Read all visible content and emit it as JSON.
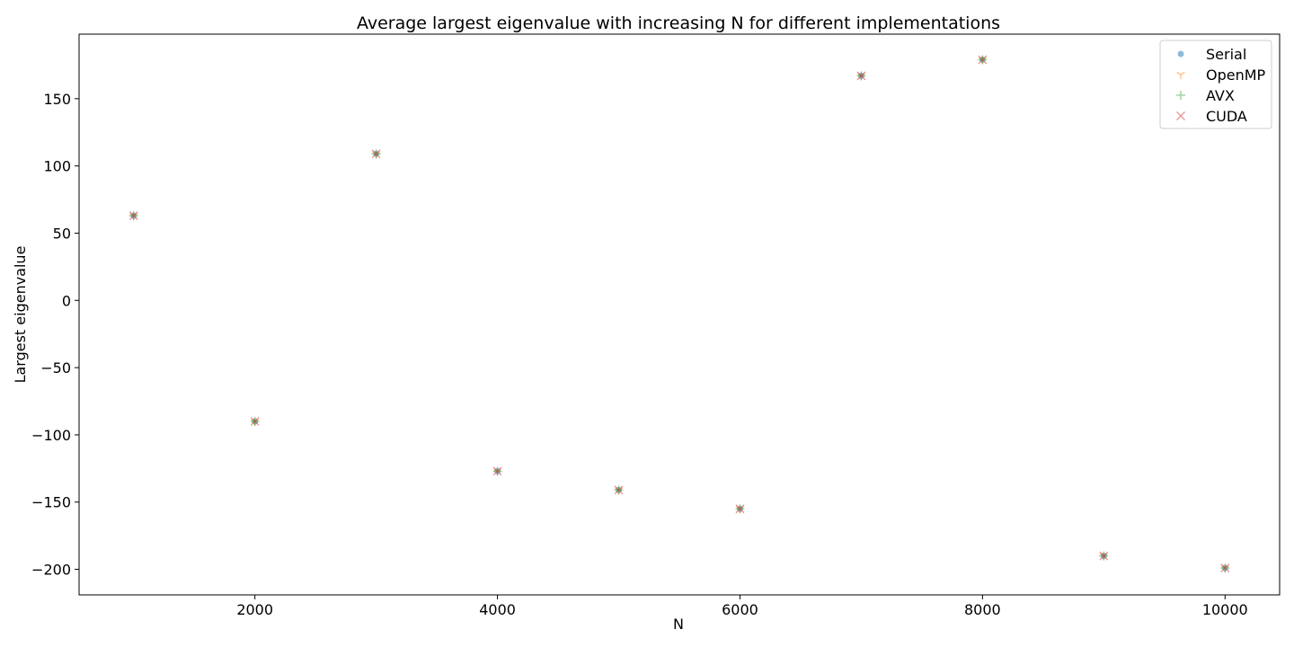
{
  "chart_data": {
    "type": "scatter",
    "title": "Average largest eigenvalue with increasing N for different implementations",
    "xlabel": "N",
    "ylabel": "Largest eigenvalue",
    "xlim": [
      550,
      10450
    ],
    "ylim": [
      -219,
      198
    ],
    "xticks": [
      2000,
      4000,
      6000,
      8000,
      10000
    ],
    "yticks": [
      -200,
      -150,
      -100,
      -50,
      0,
      50,
      100,
      150
    ],
    "x": [
      1000,
      2000,
      3000,
      4000,
      5000,
      6000,
      7000,
      8000,
      9000,
      10000
    ],
    "grid": false,
    "legend_position": "top-right",
    "series": [
      {
        "name": "Serial",
        "marker": "circle",
        "color": "#1f77b4",
        "values": [
          63,
          -90,
          109,
          -127,
          -141,
          -155,
          167,
          179,
          -190,
          -199
        ]
      },
      {
        "name": "OpenMP",
        "marker": "tri-down",
        "color": "#ff7f0e",
        "values": [
          63,
          -90,
          109,
          -127,
          -141,
          -155,
          167,
          179,
          -190,
          -199
        ]
      },
      {
        "name": "AVX",
        "marker": "plus",
        "color": "#2ca02c",
        "values": [
          63,
          -90,
          109,
          -127,
          -141,
          -155,
          167,
          179,
          -190,
          -199
        ]
      },
      {
        "name": "CUDA",
        "marker": "x",
        "color": "#d62728",
        "values": [
          63,
          -90,
          109,
          -127,
          -141,
          -155,
          167,
          179,
          -190,
          -199
        ]
      }
    ]
  }
}
